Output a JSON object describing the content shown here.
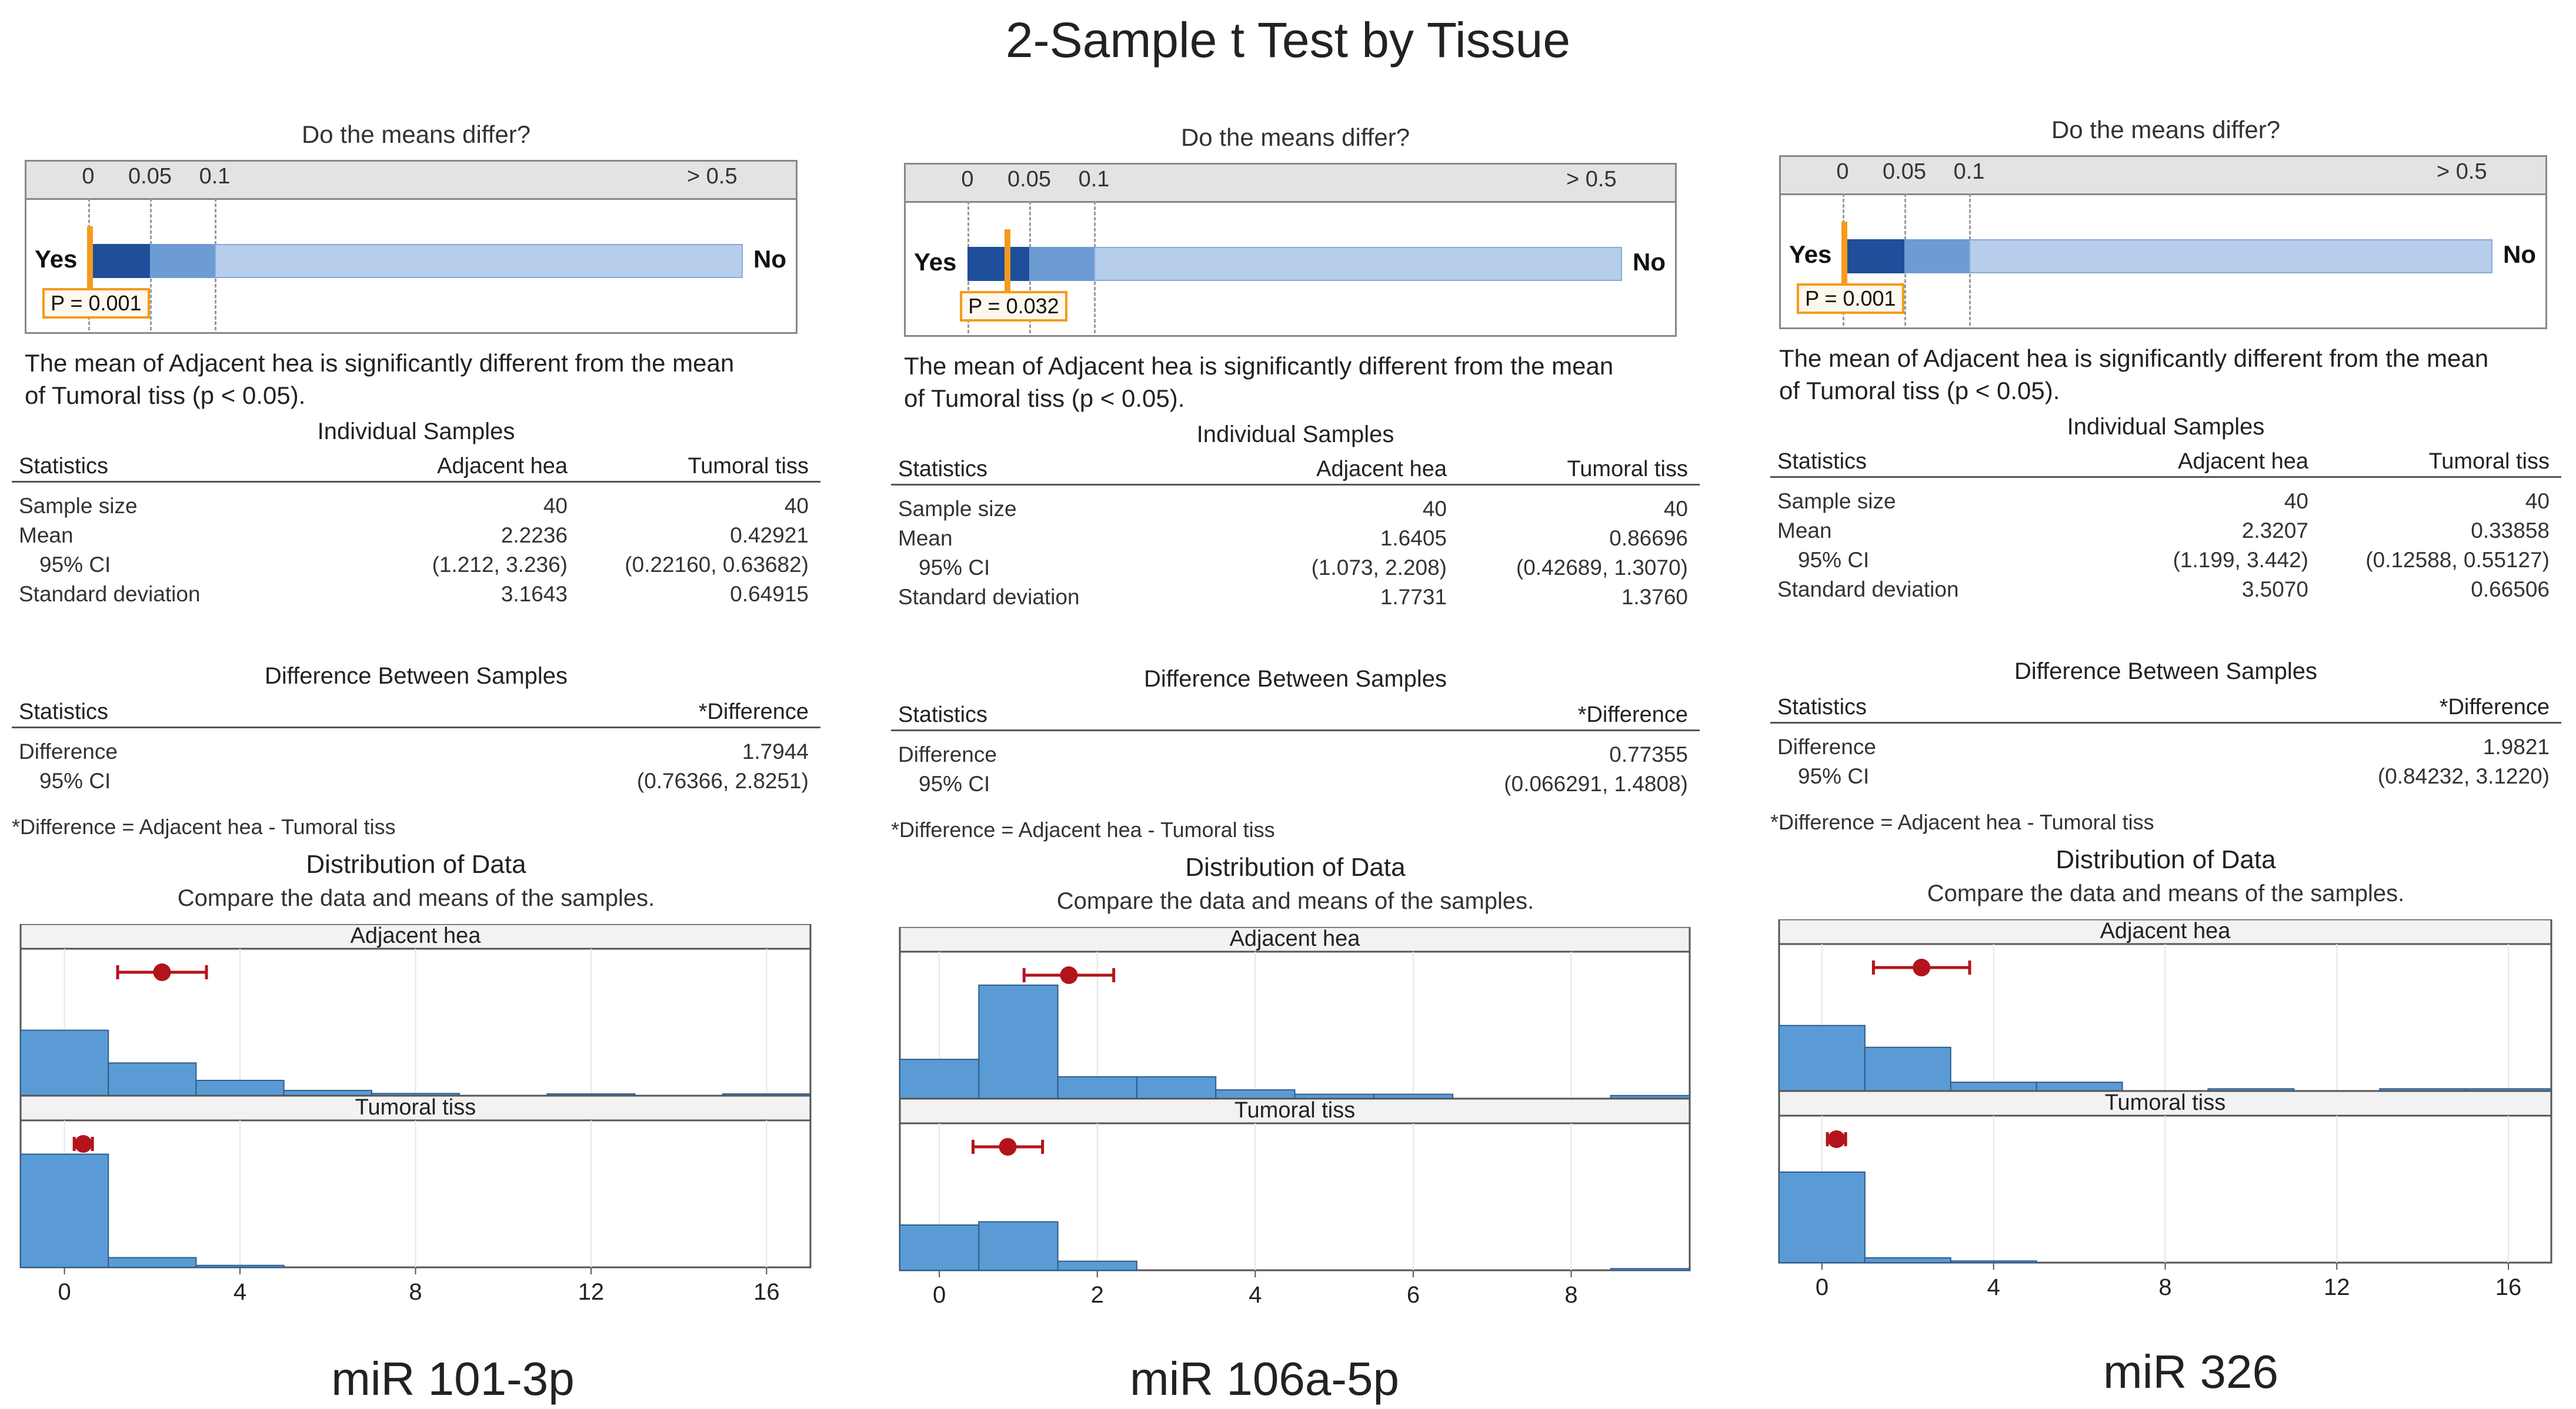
{
  "title": "2-Sample t Test by Tissue",
  "panels": [
    {
      "id": "mir101",
      "label": "miR 101-3p",
      "pvalue": {
        "title": "Do the means differ?",
        "ticks": [
          "0",
          "0.05",
          "0.1",
          "> 0.5"
        ],
        "yes": "Yes",
        "no": "No",
        "p": 0.001,
        "p_label": "P = 0.001"
      },
      "conclusion_lines": [
        "The mean of Adjacent hea is significantly different from the mean",
        "of Tumoral tiss (p < 0.05)."
      ],
      "individual": {
        "title": "Individual Samples",
        "headers": [
          "Statistics",
          "Adjacent hea",
          "Tumoral tiss"
        ],
        "rows": [
          [
            "Sample size",
            "40",
            "40"
          ],
          [
            "Mean",
            "2.2236",
            "0.42921"
          ],
          [
            "  95% CI",
            "(1.212, 3.236)",
            "(0.22160, 0.63682)"
          ],
          [
            "Standard deviation",
            "3.1643",
            "0.64915"
          ]
        ]
      },
      "difference": {
        "title": "Difference Between Samples",
        "headers": [
          "Statistics",
          "*Difference"
        ],
        "rows": [
          [
            "Difference",
            "1.7944"
          ],
          [
            "  95% CI",
            "(0.76366, 2.8251)"
          ]
        ],
        "footnote": "*Difference = Adjacent hea - Tumoral tiss"
      },
      "distribution": {
        "title": "Distribution of Data",
        "subtitle": "Compare the data and means of the samples."
      }
    },
    {
      "id": "mir106a",
      "label": "miR 106a-5p",
      "pvalue": {
        "title": "Do the means differ?",
        "ticks": [
          "0",
          "0.05",
          "0.1",
          "> 0.5"
        ],
        "yes": "Yes",
        "no": "No",
        "p": 0.032,
        "p_label": "P = 0.032"
      },
      "conclusion_lines": [
        "The mean of Adjacent hea is significantly different from the mean",
        "of Tumoral tiss (p < 0.05)."
      ],
      "individual": {
        "title": "Individual Samples",
        "headers": [
          "Statistics",
          "Adjacent hea",
          "Tumoral tiss"
        ],
        "rows": [
          [
            "Sample size",
            "40",
            "40"
          ],
          [
            "Mean",
            "1.6405",
            "0.86696"
          ],
          [
            "  95% CI",
            "(1.073, 2.208)",
            "(0.42689, 1.3070)"
          ],
          [
            "Standard deviation",
            "1.7731",
            "1.3760"
          ]
        ]
      },
      "difference": {
        "title": "Difference Between Samples",
        "headers": [
          "Statistics",
          "*Difference"
        ],
        "rows": [
          [
            "Difference",
            "0.77355"
          ],
          [
            "  95% CI",
            "(0.066291, 1.4808)"
          ]
        ],
        "footnote": "*Difference = Adjacent hea - Tumoral tiss"
      },
      "distribution": {
        "title": "Distribution of Data",
        "subtitle": "Compare the data and means of the samples."
      }
    },
    {
      "id": "mir326",
      "label": "miR 326",
      "pvalue": {
        "title": "Do the means differ?",
        "ticks": [
          "0",
          "0.05",
          "0.1",
          "> 0.5"
        ],
        "yes": "Yes",
        "no": "No",
        "p": 0.001,
        "p_label": "P = 0.001"
      },
      "conclusion_lines": [
        "The mean of Adjacent hea is significantly different from the mean",
        "of Tumoral tiss (p < 0.05)."
      ],
      "individual": {
        "title": "Individual Samples",
        "headers": [
          "Statistics",
          "Adjacent hea",
          "Tumoral tiss"
        ],
        "rows": [
          [
            "Sample size",
            "40",
            "40"
          ],
          [
            "Mean",
            "2.3207",
            "0.33858"
          ],
          [
            "  95% CI",
            "(1.199, 3.442)",
            "(0.12588, 0.55127)"
          ],
          [
            "Standard deviation",
            "3.5070",
            "0.66506"
          ]
        ]
      },
      "difference": {
        "title": "Difference Between Samples",
        "headers": [
          "Statistics",
          "*Difference"
        ],
        "rows": [
          [
            "Difference",
            "1.9821"
          ],
          [
            "  95% CI",
            "(0.84232, 3.1220)"
          ]
        ],
        "footnote": "*Difference = Adjacent hea - Tumoral tiss"
      },
      "distribution": {
        "title": "Distribution of Data",
        "subtitle": "Compare the data and means of the samples."
      }
    }
  ],
  "chart_data": [
    {
      "type": "bar",
      "title": "Distribution of Data - miR 101-3p",
      "xlim": [
        -1,
        17
      ],
      "xticks": [
        0,
        4,
        8,
        12,
        16
      ],
      "bin_width": 2,
      "series": [
        {
          "name": "Adjacent hea",
          "bin_starts": [
            -1,
            1,
            3,
            5,
            7,
            9,
            11,
            13,
            15
          ],
          "counts": [
            15,
            7.5,
            3.5,
            1.2,
            0.5,
            0,
            0.4,
            0,
            0.4
          ],
          "mean": 2.2236,
          "ci": [
            1.212,
            3.236
          ]
        },
        {
          "name": "Tumoral tiss",
          "bin_starts": [
            -1,
            1,
            3
          ],
          "counts": [
            35,
            3,
            0.6
          ],
          "mean": 0.42921,
          "ci": [
            0.2216,
            0.63682
          ]
        }
      ]
    },
    {
      "type": "bar",
      "title": "Distribution of Data - miR 106a-5p",
      "xlim": [
        -0.5,
        9.5
      ],
      "xticks": [
        0,
        2,
        4,
        6,
        8
      ],
      "bin_width": 1,
      "series": [
        {
          "name": "Adjacent hea",
          "bin_starts": [
            -0.5,
            0.5,
            1.5,
            2.5,
            3.5,
            4.5,
            5.5,
            6.5,
            7.5,
            8.5
          ],
          "counts": [
            9,
            26,
            5,
            5,
            2,
            1,
            1,
            0,
            0,
            0.7
          ],
          "mean": 1.6405,
          "ci": [
            1.073,
            2.208
          ]
        },
        {
          "name": "Tumoral tiss",
          "bin_starts": [
            -0.5,
            0.5,
            1.5,
            2.5,
            8.5
          ],
          "counts": [
            14,
            15,
            2.8,
            0,
            0.5
          ],
          "mean": 0.86696,
          "ci": [
            0.42689,
            1.307
          ]
        }
      ]
    },
    {
      "type": "bar",
      "title": "Distribution of Data - miR 326",
      "xlim": [
        -1,
        17
      ],
      "xticks": [
        0,
        4,
        8,
        12,
        16
      ],
      "bin_width": 2,
      "series": [
        {
          "name": "Adjacent hea",
          "bin_starts": [
            -1,
            1,
            3,
            5,
            7,
            9,
            11,
            13,
            15
          ],
          "counts": [
            15,
            10,
            2,
            2,
            0,
            0.5,
            0,
            0.5,
            0.5
          ],
          "mean": 2.3207,
          "ci": [
            1.199,
            3.442
          ]
        },
        {
          "name": "Tumoral tiss",
          "bin_starts": [
            -1,
            1,
            3
          ],
          "counts": [
            28,
            1.5,
            0.5
          ],
          "mean": 0.33858,
          "ci": [
            0.12588,
            0.55127
          ]
        }
      ]
    }
  ],
  "colors": {
    "pv_yes_dark": "#1f4e9b",
    "pv_mid": "#6d9bd3",
    "pv_light": "#b6cdec",
    "bar_fill": "#5b9bd5",
    "bar_stroke": "#2e5d8c",
    "mean_marker": "#b3141b",
    "p_marker": "#f39b1d"
  }
}
